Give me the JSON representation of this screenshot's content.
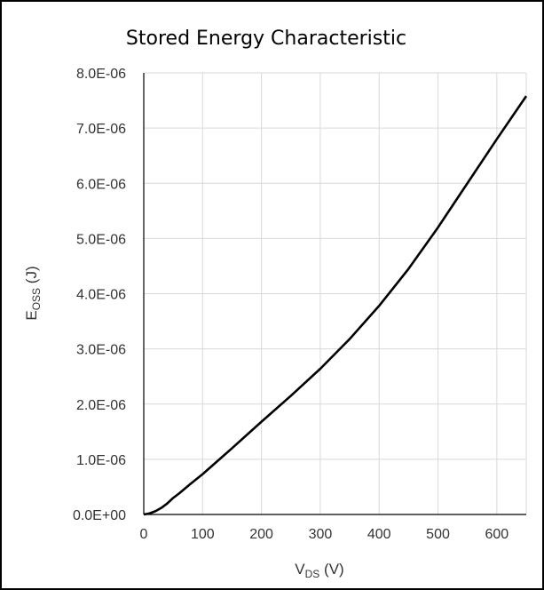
{
  "chart_data": {
    "type": "line",
    "title": "Stored Energy Characteristic",
    "xlabel": {
      "main": "V",
      "sub": "DS",
      "unit": " (V)"
    },
    "ylabel": {
      "main": "E",
      "sub": "OSS",
      "unit": " (J)"
    },
    "xlim": [
      0,
      650
    ],
    "ylim": [
      0,
      8e-06
    ],
    "xticks": [
      0,
      100,
      200,
      300,
      400,
      500,
      600
    ],
    "xtick_labels": [
      "0",
      "100",
      "200",
      "300",
      "400",
      "500",
      "600"
    ],
    "yticks": [
      0,
      1e-06,
      2e-06,
      3e-06,
      4e-06,
      5e-06,
      6e-06,
      7e-06,
      8e-06
    ],
    "ytick_labels": [
      "0.0E+00",
      "1.0E-06",
      "2.0E-06",
      "3.0E-06",
      "4.0E-06",
      "5.0E-06",
      "6.0E-06",
      "7.0E-06",
      "8.0E-06"
    ],
    "grid": true,
    "series": [
      {
        "color": "#000000",
        "x": [
          0,
          10,
          20,
          30,
          40,
          50,
          60,
          80,
          100,
          150,
          200,
          250,
          300,
          350,
          400,
          450,
          500,
          550,
          600,
          650
        ],
        "y": [
          0,
          2e-08,
          6e-08,
          1.2e-07,
          2e-07,
          3e-07,
          3.8e-07,
          5.6e-07,
          7.3e-07,
          1.2e-06,
          1.68e-06,
          2.15e-06,
          2.64e-06,
          3.18e-06,
          3.78e-06,
          4.45e-06,
          5.2e-06,
          6e-06,
          6.8e-06,
          7.58e-06
        ]
      }
    ]
  }
}
